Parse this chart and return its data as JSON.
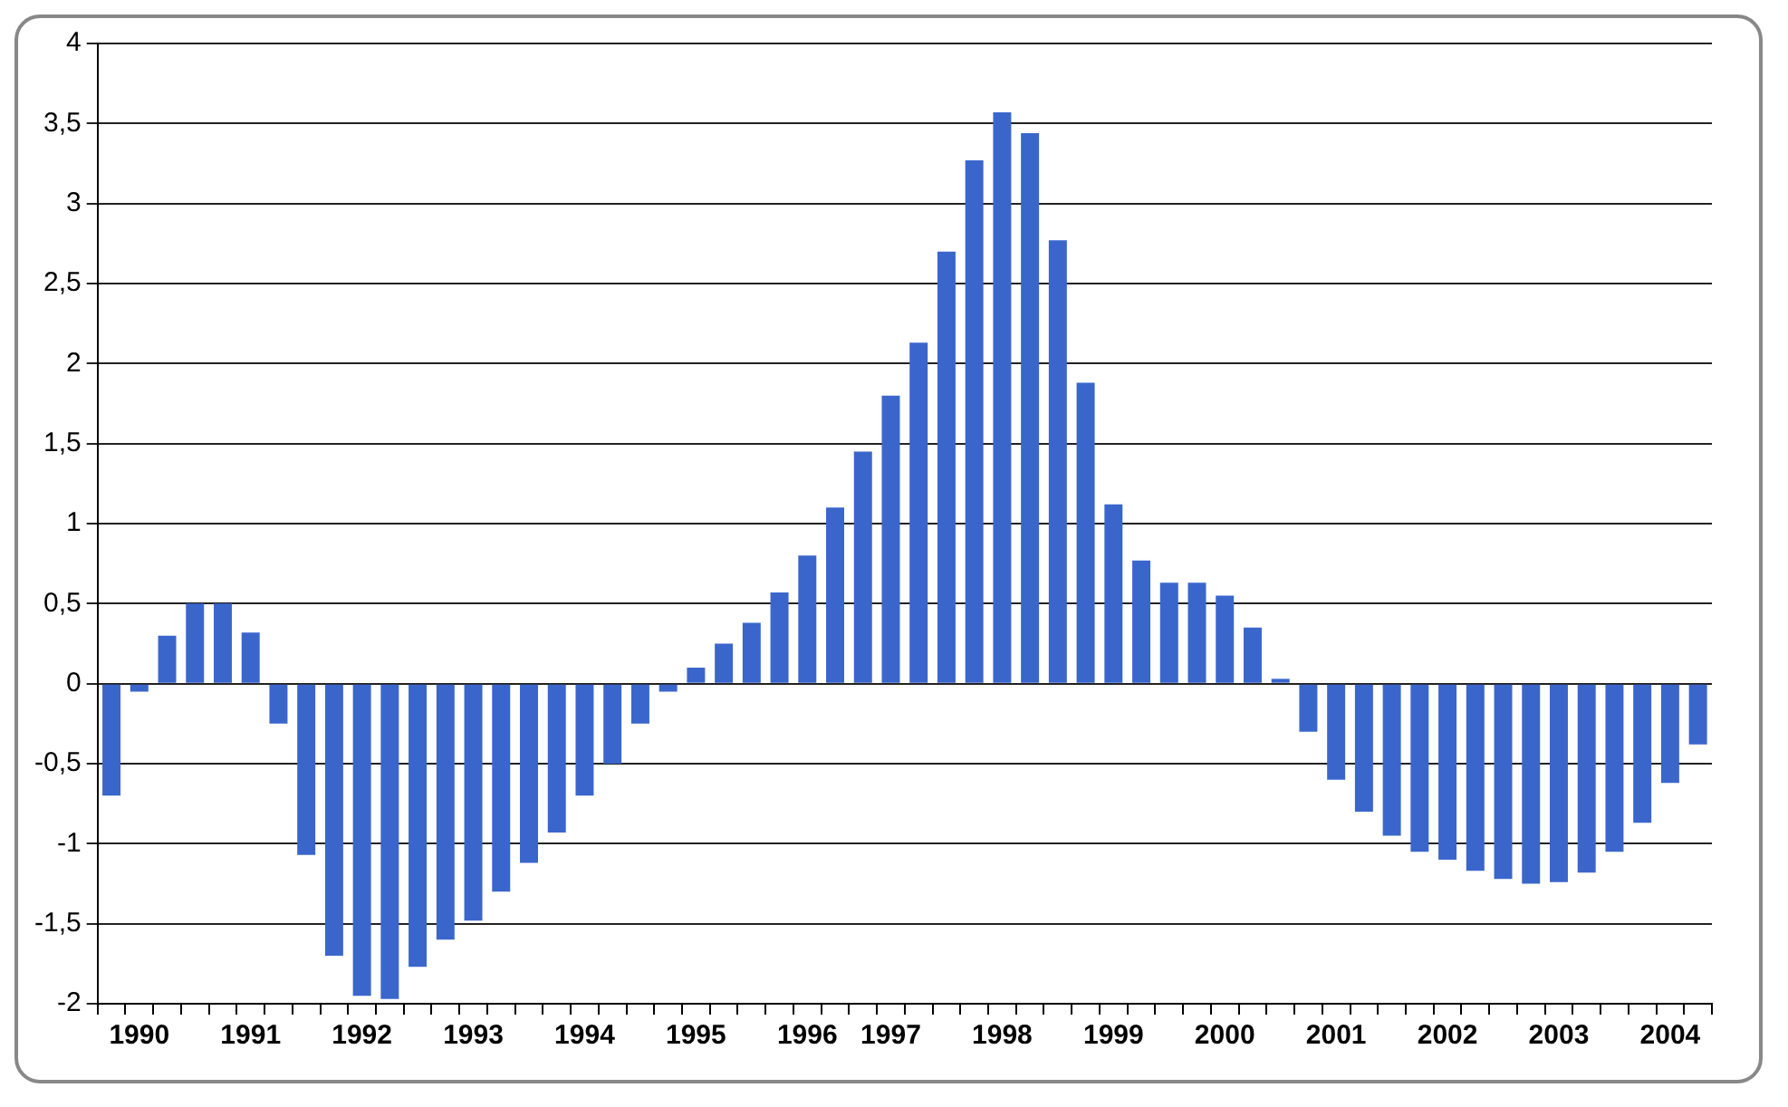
{
  "chart_data": {
    "type": "bar",
    "categories": [
      null,
      "1990",
      null,
      null,
      null,
      "1991",
      null,
      null,
      null,
      "1992",
      null,
      null,
      null,
      "1993",
      null,
      null,
      null,
      "1994",
      null,
      null,
      null,
      "1995",
      null,
      null,
      null,
      "1996",
      null,
      null,
      "1997",
      null,
      null,
      null,
      "1998",
      null,
      null,
      null,
      "1999",
      null,
      null,
      null,
      "2000",
      null,
      null,
      null,
      "2001",
      null,
      null,
      null,
      "2002",
      null,
      null,
      null,
      "2003",
      null,
      null,
      null,
      "2004",
      null
    ],
    "values": [
      -0.7,
      -0.05,
      0.3,
      0.5,
      0.5,
      0.32,
      -0.25,
      -1.07,
      -1.7,
      -1.95,
      -1.97,
      -1.77,
      -1.6,
      -1.48,
      -1.3,
      -1.12,
      -0.93,
      -0.7,
      -0.5,
      -0.25,
      -0.05,
      0.1,
      0.25,
      0.38,
      0.57,
      0.8,
      1.1,
      1.45,
      1.8,
      2.13,
      2.7,
      3.27,
      3.57,
      3.44,
      2.77,
      1.88,
      1.12,
      0.77,
      0.63,
      0.63,
      0.55,
      0.35,
      0.03,
      -0.3,
      -0.6,
      -0.8,
      -0.95,
      -1.05,
      -1.1,
      -1.17,
      -1.22,
      -1.25,
      -1.24,
      -1.18,
      -1.05,
      -0.87,
      -0.62,
      -0.38
    ],
    "color": "#3a66cc",
    "ylim": [
      -2,
      4
    ],
    "yticks": [
      {
        "value": -2,
        "label": "-2"
      },
      {
        "value": -1.5,
        "label": "-1,5"
      },
      {
        "value": -1,
        "label": "-1"
      },
      {
        "value": -0.5,
        "label": "-0,5"
      },
      {
        "value": 0,
        "label": "0"
      },
      {
        "value": 0.5,
        "label": "0,5"
      },
      {
        "value": 1,
        "label": "1"
      },
      {
        "value": 1.5,
        "label": "1,5"
      },
      {
        "value": 2,
        "label": "2"
      },
      {
        "value": 2.5,
        "label": "2,5"
      },
      {
        "value": 3,
        "label": "3"
      },
      {
        "value": 3.5,
        "label": "3,5"
      },
      {
        "value": 4,
        "label": "4"
      }
    ],
    "grid": "y"
  }
}
